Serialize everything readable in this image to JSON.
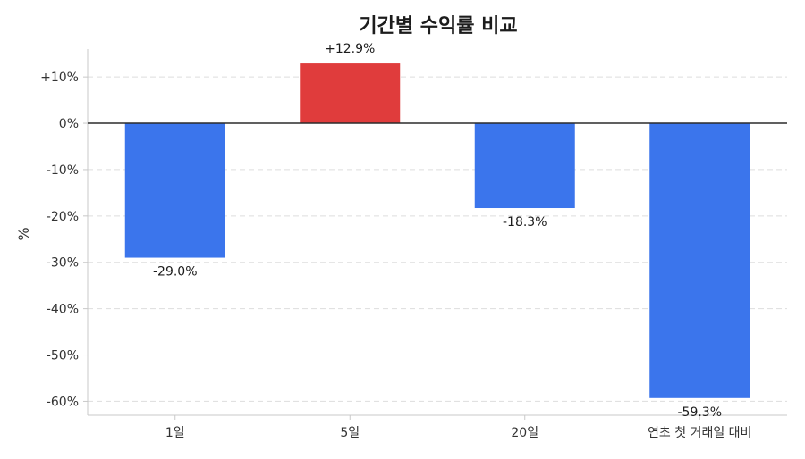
{
  "chart_data": {
    "type": "bar",
    "title": "기간별 수익률 비교",
    "ylabel": "%",
    "xlabel": "",
    "categories": [
      "1일",
      "5일",
      "20일",
      "연초 첫 거래일 대비"
    ],
    "values": [
      -29.0,
      12.9,
      -18.3,
      -59.3
    ],
    "value_labels": [
      "-29.0%",
      "+12.9%",
      "-18.3%",
      "-59.3%"
    ],
    "ylim": [
      -63,
      16
    ],
    "yticks": [
      10,
      0,
      -10,
      -20,
      -30,
      -40,
      -50,
      -60
    ],
    "ytick_labels": [
      "+10%",
      "0%",
      "-10%",
      "-20%",
      "-30%",
      "-40%",
      "-50%",
      "-60%"
    ],
    "grid": true,
    "colors": {
      "positive": "#e03c3c",
      "negative": "#3b75ec"
    }
  }
}
